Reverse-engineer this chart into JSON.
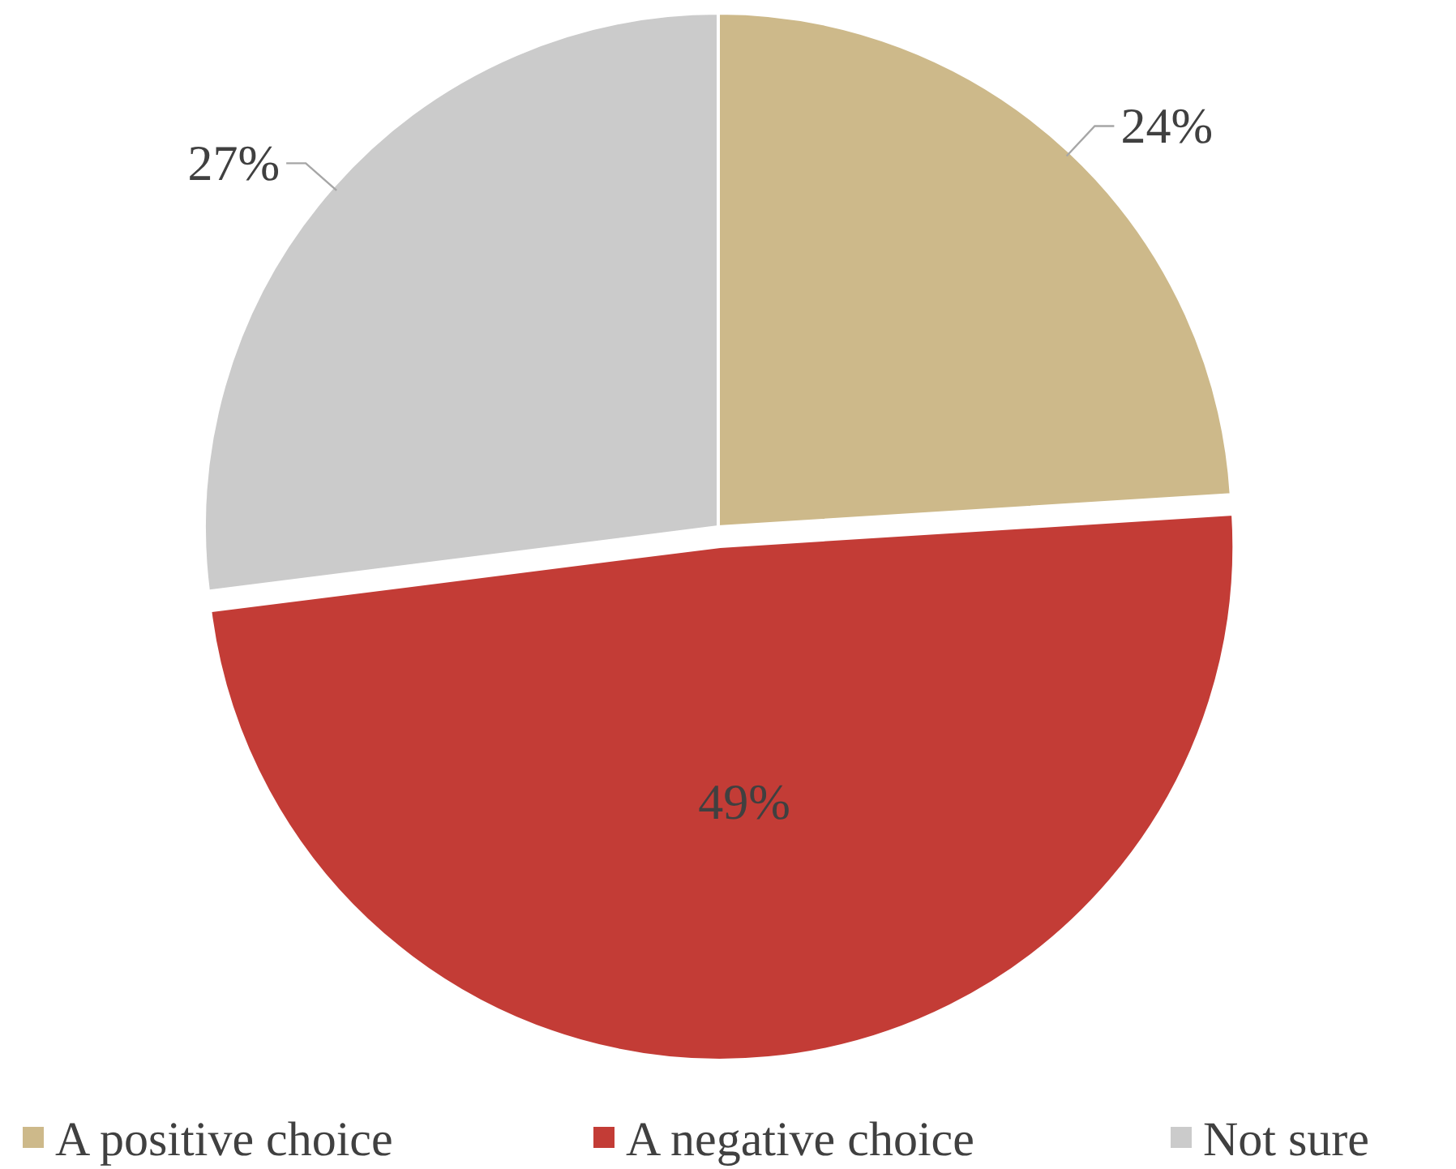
{
  "chart_data": {
    "type": "pie",
    "categories": [
      "A positive choice",
      "A negative choice",
      "Not sure"
    ],
    "values": [
      24,
      49,
      27
    ],
    "colors": [
      "#cdb98a",
      "#c33c36",
      "#cbcbcb"
    ],
    "value_labels": [
      "24%",
      "49%",
      "27%"
    ],
    "legend": "bottom"
  }
}
